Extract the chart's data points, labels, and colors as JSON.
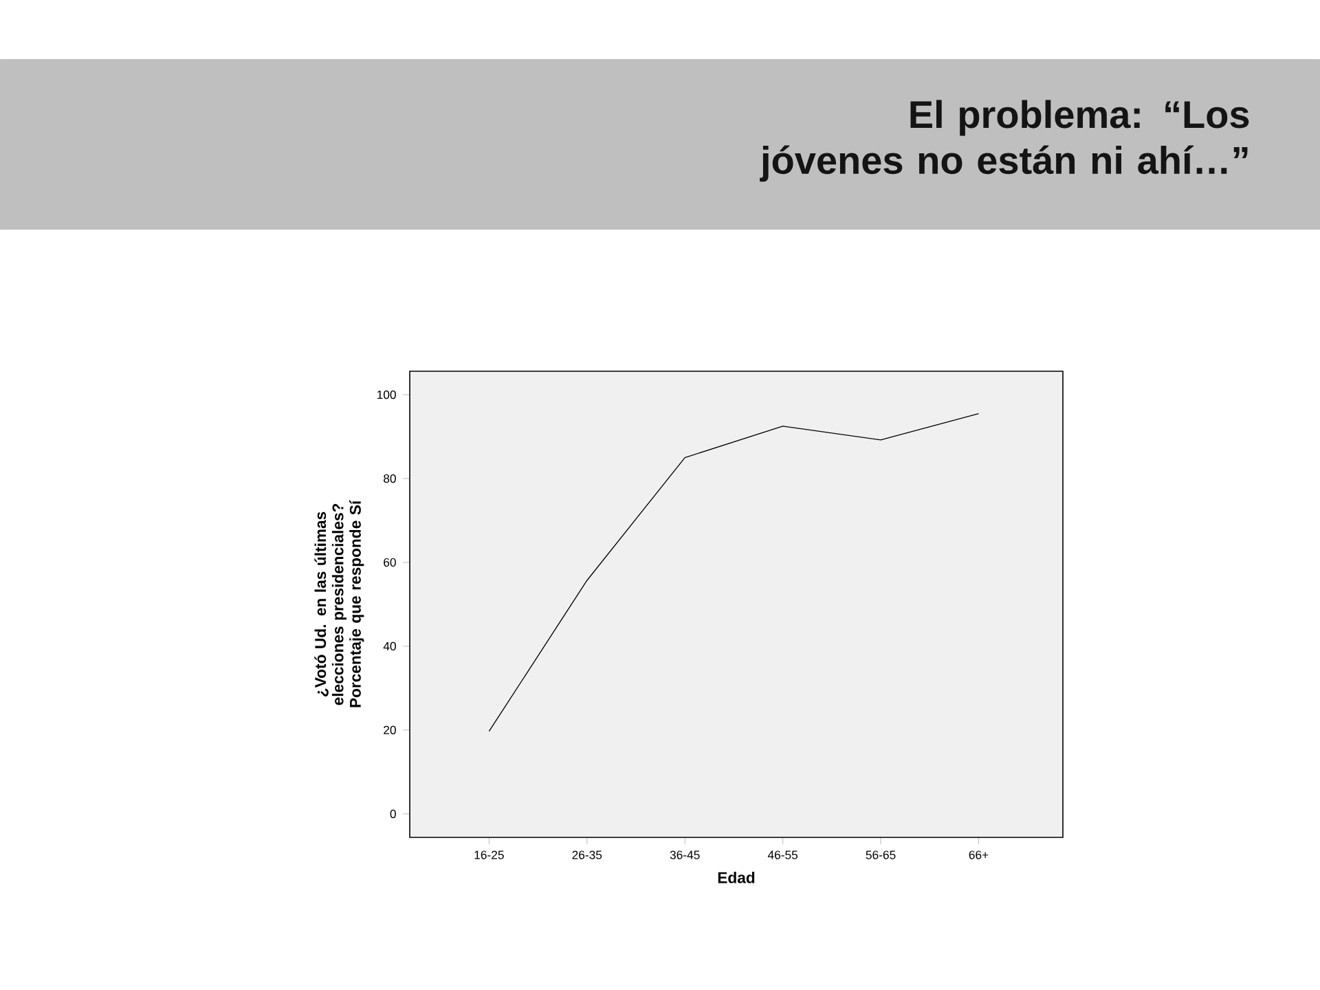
{
  "chart_data": {
    "type": "line",
    "title": "El problema: “Los jóvenes no están ni ahí…”",
    "xlabel": "Edad",
    "ylabel": "¿Votó Ud. en las últimas elecciones presidenciales? Porcentaje que responde Sí",
    "categories": [
      "16-25",
      "26-35",
      "36-45",
      "46-55",
      "56-65",
      "66+"
    ],
    "values": [
      19.7,
      55.7,
      85.0,
      92.5,
      89.2,
      95.5
    ],
    "color": "#000000",
    "ylim": [
      -5.6,
      105.6
    ],
    "yticks": [
      0,
      20,
      40,
      60,
      80,
      100
    ]
  }
}
